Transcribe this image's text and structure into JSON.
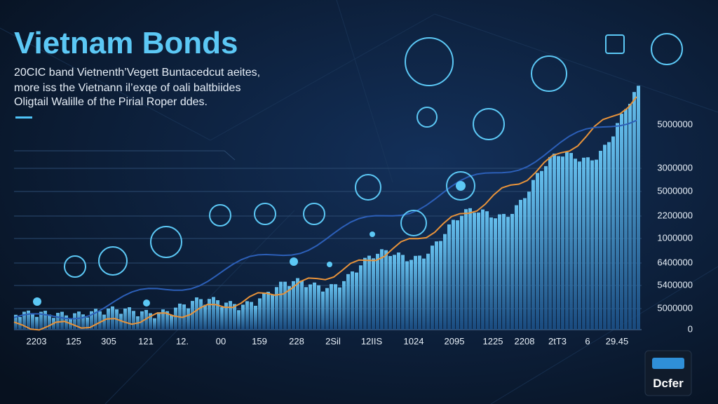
{
  "title": "Vietnam Bonds",
  "description": [
    "20CIC band Vietnenth’Vegett Buntacedcut aeites,",
    "more iss the Vietnann il’exqe of oali baltbiides",
    "Oligtail Walille of the Pirial Roper ddes."
  ],
  "y_labels": [
    "5000000",
    "3000000",
    "5000000",
    "2200000",
    "1000000",
    "6400000",
    "5400000",
    "5000000",
    "0"
  ],
  "x_labels": [
    "2203",
    "125",
    "305",
    "121",
    "12.",
    "00",
    "159",
    "228",
    "2Sil",
    "12IIS",
    "1024",
    "2095",
    "1225",
    "2208",
    "2tT3",
    "6",
    "29.45"
  ],
  "badge": "Dcfer"
}
